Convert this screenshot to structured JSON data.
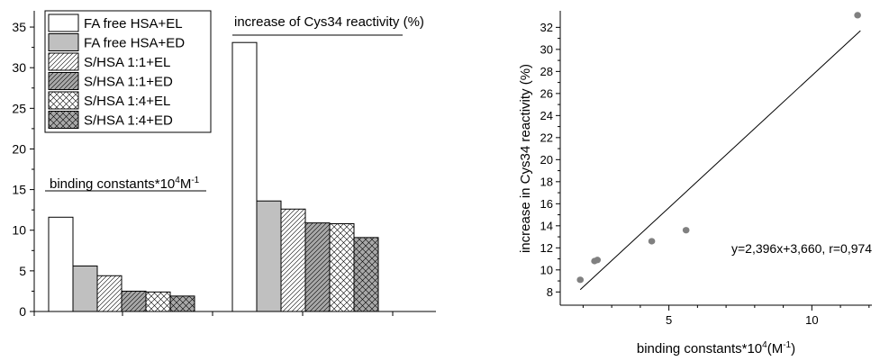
{
  "chart_data": [
    {
      "type": "bar",
      "groups": [
        "binding constants*10⁴M⁻¹",
        "increase of Cys34 reactivity (%)"
      ],
      "group_label_parts": [
        {
          "base": "binding constants*10",
          "sup1": "4",
          "mid": "M",
          "sup2": "-1"
        },
        {
          "text": "increase of Cys34 reactivity (%)"
        }
      ],
      "series": [
        {
          "name": "FA free HSA+EL",
          "values": [
            11.6,
            33.1
          ],
          "fill": "#ffffff",
          "pattern": "none"
        },
        {
          "name": "FA free HSA+ED",
          "values": [
            5.6,
            13.6
          ],
          "fill": "#c0c0c0",
          "pattern": "none"
        },
        {
          "name": "S/HSA 1:1+EL",
          "values": [
            4.4,
            12.6
          ],
          "fill": "#ffffff",
          "pattern": "diag"
        },
        {
          "name": "S/HSA 1:1+ED",
          "values": [
            2.5,
            10.9
          ],
          "fill": "#a8a8a8",
          "pattern": "diag"
        },
        {
          "name": "S/HSA 1:4+EL",
          "values": [
            2.4,
            10.8
          ],
          "fill": "#ffffff",
          "pattern": "cross"
        },
        {
          "name": "S/HSA 1:4+ED",
          "values": [
            1.9,
            9.1
          ],
          "fill": "#a8a8a8",
          "pattern": "cross"
        }
      ],
      "y_ticks": [
        "0",
        "5",
        "10",
        "15",
        "20",
        "25",
        "30",
        "35"
      ],
      "ylim": [
        0,
        37
      ],
      "legend_position": "top-left"
    },
    {
      "type": "scatter",
      "xlabel_parts": {
        "base": "binding constants*10",
        "sup": "4",
        "rest": "(M",
        "sup2": "-1",
        "end": ")"
      },
      "ylabel": "increase in Cys34 reactivity (%)",
      "x_ticks": [
        "5",
        "10"
      ],
      "y_ticks": [
        "8",
        "10",
        "12",
        "14",
        "16",
        "18",
        "20",
        "22",
        "24",
        "26",
        "28",
        "30",
        "32"
      ],
      "xlim": [
        1.2,
        12.1
      ],
      "ylim": [
        6.8,
        33.5
      ],
      "points": [
        {
          "x": 1.9,
          "y": 9.1
        },
        {
          "x": 2.4,
          "y": 10.8
        },
        {
          "x": 2.5,
          "y": 10.9
        },
        {
          "x": 4.4,
          "y": 12.6
        },
        {
          "x": 5.6,
          "y": 13.6
        },
        {
          "x": 11.6,
          "y": 33.1
        }
      ],
      "fit": {
        "slope": 2.396,
        "intercept": 3.66,
        "x_range": [
          1.9,
          11.7
        ]
      },
      "annotation": "y=2,396x+3,660, r=0,974",
      "point_color": "#808080"
    }
  ]
}
